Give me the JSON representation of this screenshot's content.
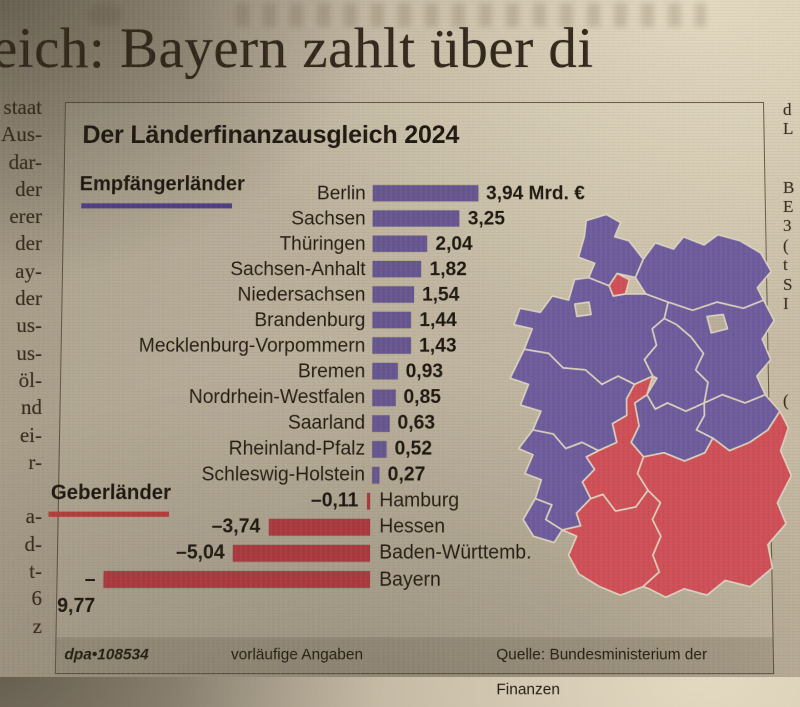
{
  "headline": "eich: Bayern zahlt über di",
  "margins": {
    "left": [
      "staat",
      "Aus-",
      "dar-",
      "der",
      "erer",
      "der",
      "ay-",
      "der",
      "us-",
      "us-",
      "öl-",
      "nd",
      "ei-",
      "r-",
      "",
      "a-",
      "d-",
      "t-",
      "6",
      "z"
    ],
    "right": [
      "d",
      "L",
      "",
      "",
      "B",
      "E",
      "3",
      "(",
      "t",
      "S",
      "I",
      "",
      "",
      "",
      "",
      "("
    ]
  },
  "infographic": {
    "title": "Der Länderfinanzausgleich 2024",
    "recipients_label": "Empfängerländer",
    "donors_label": "Geberländer",
    "footer": {
      "credit": "dpa•108534",
      "note": "vorläufige Angaben",
      "source": "Quelle: Bundesministerium der Finanzen"
    }
  },
  "chart_data": {
    "type": "bar",
    "orientation": "horizontal",
    "title": "Der Länderfinanzausgleich 2024",
    "unit": "Mrd. €",
    "xlim": [
      -9.77,
      3.94
    ],
    "legend": [
      {
        "label": "Empfängerländer",
        "color": "#5f5092"
      },
      {
        "label": "Geberländer",
        "color": "#ad3a3e"
      }
    ],
    "series": [
      {
        "name": "Berlin",
        "value": 3.94,
        "label": "3,94 Mrd. €",
        "group": "recipient"
      },
      {
        "name": "Sachsen",
        "value": 3.25,
        "label": "3,25",
        "group": "recipient"
      },
      {
        "name": "Thüringen",
        "value": 2.04,
        "label": "2,04",
        "group": "recipient"
      },
      {
        "name": "Sachsen-Anhalt",
        "value": 1.82,
        "label": "1,82",
        "group": "recipient"
      },
      {
        "name": "Niedersachsen",
        "value": 1.54,
        "label": "1,54",
        "group": "recipient"
      },
      {
        "name": "Brandenburg",
        "value": 1.44,
        "label": "1,44",
        "group": "recipient"
      },
      {
        "name": "Mecklenburg-Vorpommern",
        "value": 1.43,
        "label": "1,43",
        "group": "recipient"
      },
      {
        "name": "Bremen",
        "value": 0.93,
        "label": "0,93",
        "group": "recipient"
      },
      {
        "name": "Nordrhein-Westfalen",
        "value": 0.85,
        "label": "0,85",
        "group": "recipient"
      },
      {
        "name": "Saarland",
        "value": 0.63,
        "label": "0,63",
        "group": "recipient"
      },
      {
        "name": "Rheinland-Pfalz",
        "value": 0.52,
        "label": "0,52",
        "group": "recipient"
      },
      {
        "name": "Schleswig-Holstein",
        "value": 0.27,
        "label": "0,27",
        "group": "recipient"
      },
      {
        "name": "Hamburg",
        "value": -0.11,
        "label": "–0,11",
        "group": "donor"
      },
      {
        "name": "Hessen",
        "value": -3.74,
        "label": "–3,74",
        "group": "donor"
      },
      {
        "name": "Baden-Württemb.",
        "value": -5.04,
        "label": "–5,04",
        "group": "donor"
      },
      {
        "name": "Bayern",
        "value": -9.77,
        "label": "–9,77",
        "group": "donor"
      }
    ],
    "colors": {
      "recipient": "#66568f",
      "donor": "#a9393f"
    }
  },
  "map": {
    "fills": {
      "recipient": "#6d5c9c",
      "donor": "#cf4f57",
      "paper": "#b9ae9a",
      "border": "#dcd2be"
    },
    "states": {
      "schleswig-holstein": "recipient",
      "hamburg": "donor",
      "mecklenburg-vorpommern": "recipient",
      "niedersachsen": "recipient",
      "bremen": "paper",
      "brandenburg": "recipient",
      "berlin": "paper",
      "sachsen-anhalt": "recipient",
      "sachsen": "recipient",
      "thueringen": "recipient",
      "nordrhein-westfalen": "recipient",
      "hessen": "donor",
      "rheinland-pfalz": "recipient",
      "saarland": "recipient",
      "baden-wuerttemberg": "donor",
      "bayern": "donor"
    }
  }
}
